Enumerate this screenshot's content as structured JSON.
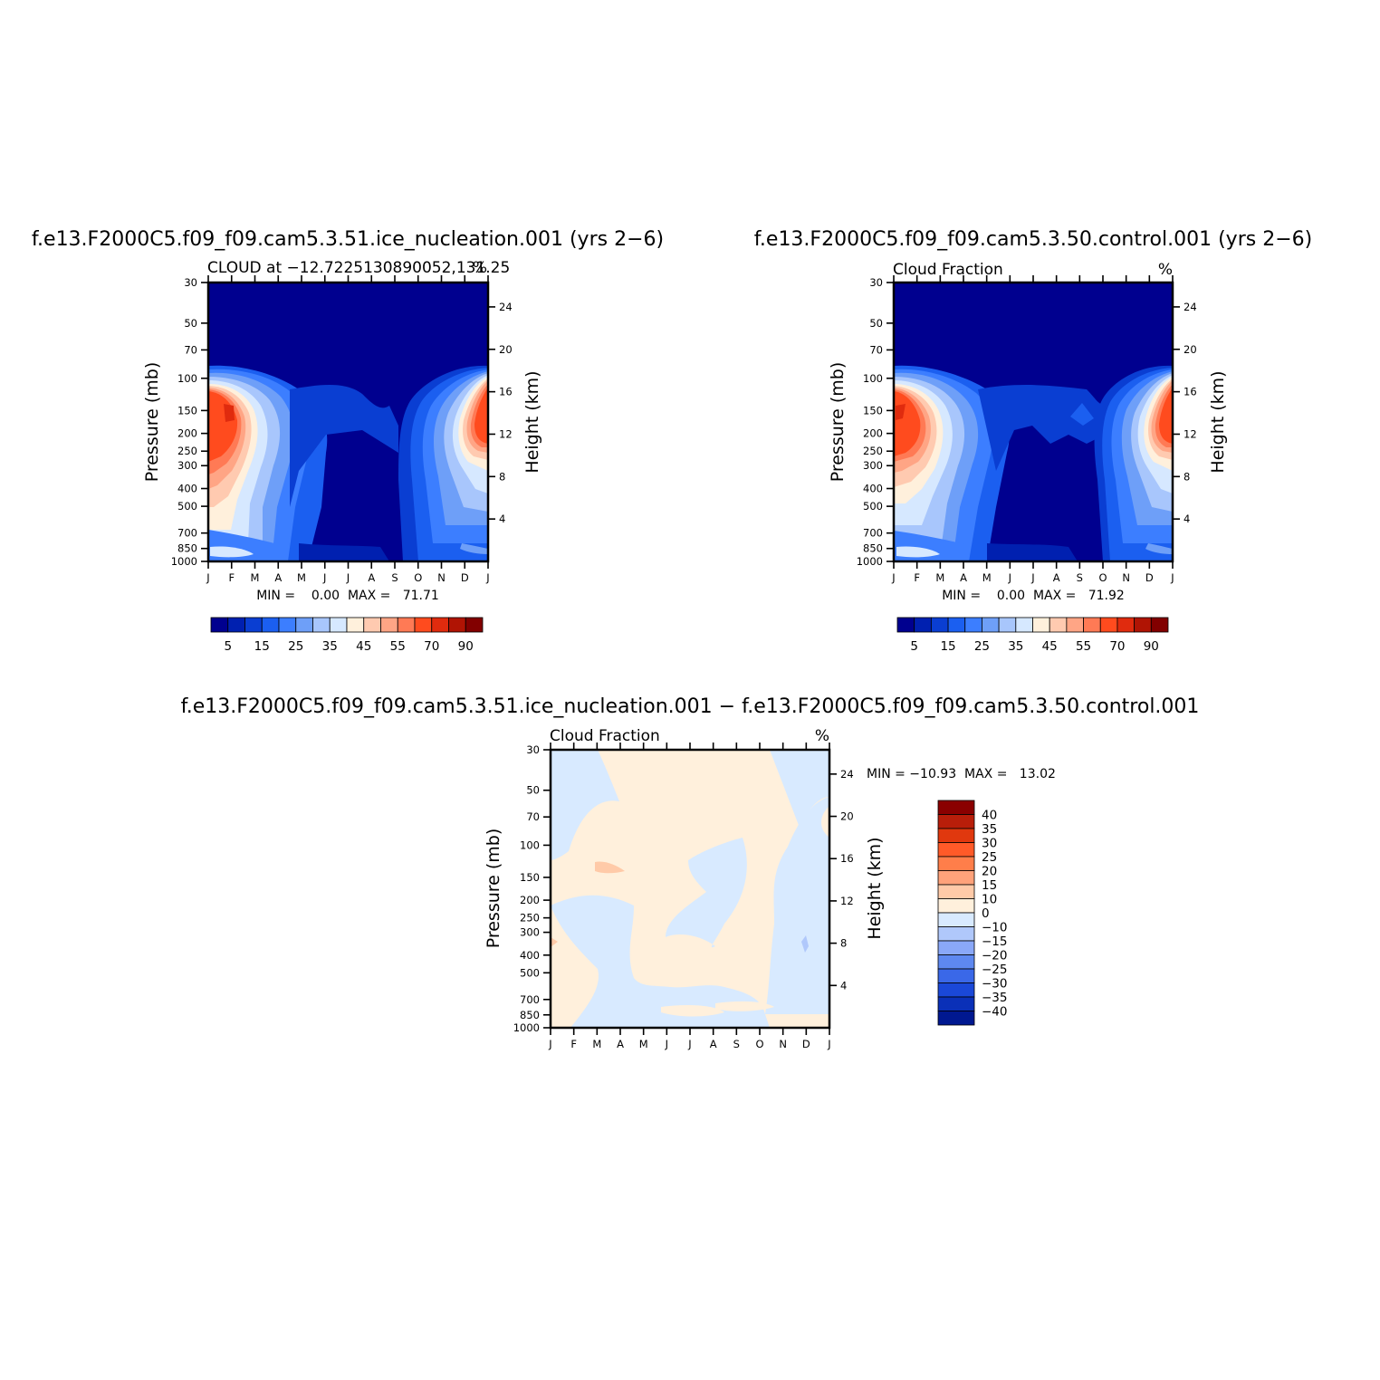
{
  "chart_data": [
    {
      "type": "heatmap",
      "title": "f.e13.F2000C5.f09_f09.cam5.3.51.ice_nucleation.001 (yrs 2-6)",
      "subtitle": "CLOUD at -12.7225130890052,131.25",
      "units": "%",
      "ylabel": "Pressure (mb)",
      "ylabel_right": "Height (km)",
      "stats": "MIN =    0.00  MAX =   71.71",
      "x": [
        "J",
        "F",
        "M",
        "A",
        "M",
        "J",
        "J",
        "A",
        "S",
        "O",
        "N",
        "D",
        "J"
      ],
      "y_ticks": [
        30,
        50,
        70,
        100,
        150,
        200,
        250,
        300,
        400,
        500,
        700,
        850,
        1000
      ],
      "y_right_ticks": [
        24,
        20,
        16,
        12,
        8,
        4
      ],
      "levels": [
        5,
        10,
        15,
        20,
        25,
        30,
        35,
        40,
        45,
        50,
        55,
        60,
        70,
        80,
        90
      ],
      "colorbar_labels": [
        "5",
        "15",
        "25",
        "35",
        "45",
        "55",
        "70",
        "90"
      ],
      "colors": [
        "#00008f",
        "#0020b0",
        "#0a3ed2",
        "#1b5ff0",
        "#3c7eff",
        "#6e9ff8",
        "#a8c6fc",
        "#d6e8ff",
        "#fff0dc",
        "#ffcab0",
        "#ffa585",
        "#ff7a55",
        "#ff4b1e",
        "#e02b0e",
        "#b01404",
        "#820000"
      ]
    },
    {
      "type": "heatmap",
      "title": "f.e13.F2000C5.f09_f09.cam5.3.50.control.001 (yrs 2-6)",
      "subtitle": "Cloud Fraction",
      "units": "%",
      "ylabel": "Pressure (mb)",
      "ylabel_right": "Height (km)",
      "stats": "MIN =    0.00  MAX =   71.92",
      "x": [
        "J",
        "F",
        "M",
        "A",
        "M",
        "J",
        "J",
        "A",
        "S",
        "O",
        "N",
        "D",
        "J"
      ],
      "y_ticks": [
        30,
        50,
        70,
        100,
        150,
        200,
        250,
        300,
        400,
        500,
        700,
        850,
        1000
      ],
      "y_right_ticks": [
        24,
        20,
        16,
        12,
        8,
        4
      ],
      "levels": [
        5,
        10,
        15,
        20,
        25,
        30,
        35,
        40,
        45,
        50,
        55,
        60,
        70,
        80,
        90
      ],
      "colorbar_labels": [
        "5",
        "15",
        "25",
        "35",
        "45",
        "55",
        "70",
        "90"
      ],
      "colors": [
        "#00008f",
        "#0020b0",
        "#0a3ed2",
        "#1b5ff0",
        "#3c7eff",
        "#6e9ff8",
        "#a8c6fc",
        "#d6e8ff",
        "#fff0dc",
        "#ffcab0",
        "#ffa585",
        "#ff7a55",
        "#ff4b1e",
        "#e02b0e",
        "#b01404",
        "#820000"
      ]
    },
    {
      "type": "heatmap",
      "title": "f.e13.F2000C5.f09_f09.cam5.3.51.ice_nucleation.001 - f.e13.F2000C5.f09_f09.cam5.3.50.control.001",
      "subtitle": "Cloud Fraction",
      "units": "%",
      "ylabel": "Pressure (mb)",
      "ylabel_right": "Height (km)",
      "stats": "MIN = -10.93  MAX =   13.02",
      "x": [
        "J",
        "F",
        "M",
        "A",
        "M",
        "J",
        "J",
        "A",
        "S",
        "O",
        "N",
        "D",
        "J"
      ],
      "y_ticks": [
        30,
        50,
        70,
        100,
        150,
        200,
        250,
        300,
        400,
        500,
        700,
        850,
        1000
      ],
      "y_right_ticks": [
        24,
        20,
        16,
        12,
        8,
        4
      ],
      "levels": [
        40,
        35,
        30,
        25,
        20,
        15,
        10,
        0,
        -10,
        -15,
        -20,
        -25,
        -30,
        -35,
        -40
      ],
      "colorbar_labels": [
        "40",
        "35",
        "30",
        "25",
        "20",
        "15",
        "10",
        "0",
        "-10",
        "-15",
        "-20",
        "-25",
        "-30",
        "-35",
        "-40"
      ],
      "colors": [
        "#8a0000",
        "#b81e0a",
        "#e0380e",
        "#ff5a28",
        "#ff7e4a",
        "#ffa27a",
        "#ffcaa8",
        "#fff0dc",
        "#d8eaff",
        "#b0c8fb",
        "#8aa8f8",
        "#5e88f0",
        "#3a68e8",
        "#1a48d8",
        "#0a30b8",
        "#001890"
      ]
    }
  ]
}
